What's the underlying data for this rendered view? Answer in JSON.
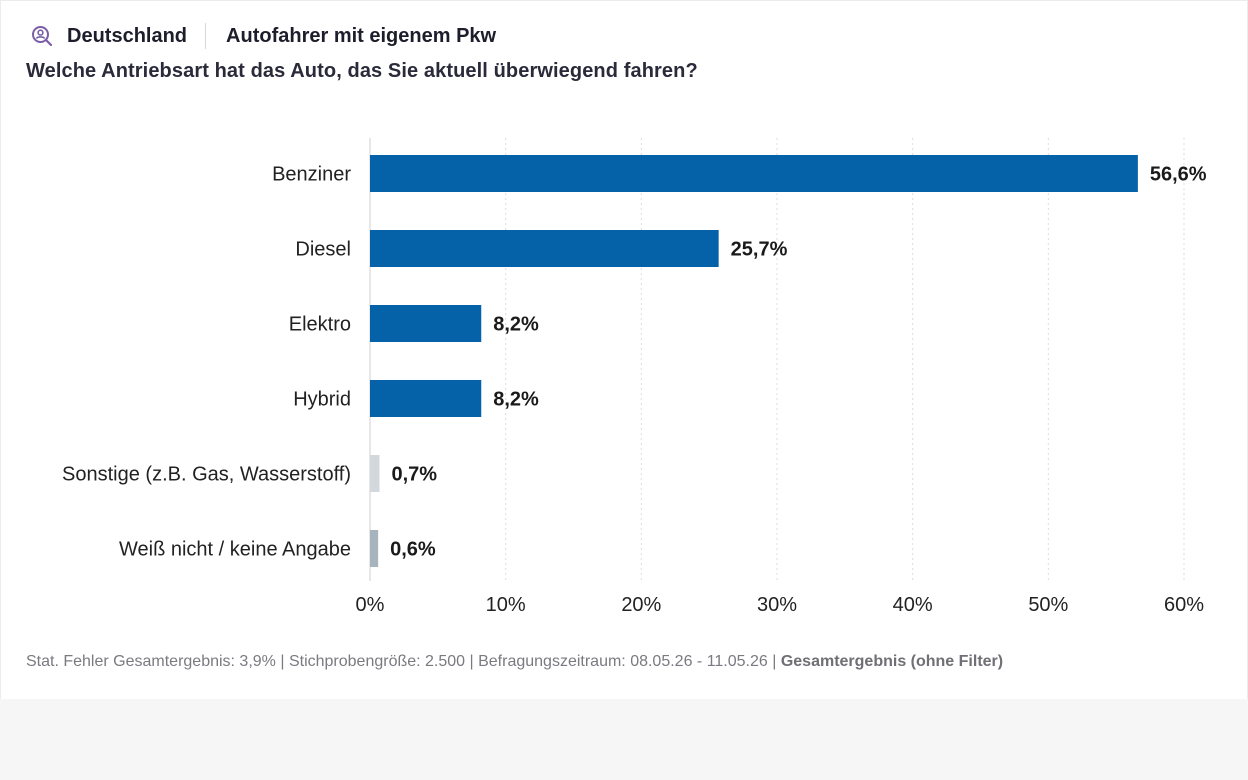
{
  "header": {
    "country": "Deutschland",
    "target_group": "Autofahrer mit eigenem Pkw",
    "question": "Welche Antriebsart hat das Auto, das Sie aktuell überwiegend fahren?"
  },
  "icons": {
    "country_icon": "search-person-icon"
  },
  "colors": {
    "primary_bar": "#0561a8",
    "other_bar": "#d3d8dd",
    "unknown_bar": "#a7b3bd",
    "grid": "#dcdcdc",
    "icon": "#7b5ea7"
  },
  "chart_data": {
    "type": "bar",
    "orientation": "horizontal",
    "categories": [
      "Benziner",
      "Diesel",
      "Elektro",
      "Hybrid",
      "Sonstige (z.B. Gas, Wasserstoff)",
      "Weiß nicht / keine Angabe"
    ],
    "values": [
      56.6,
      25.7,
      8.2,
      8.2,
      0.7,
      0.6
    ],
    "value_labels": [
      "56,6%",
      "25,7%",
      "8,2%",
      "8,2%",
      "0,7%",
      "0,6%"
    ],
    "bar_colors": [
      "#0561a8",
      "#0561a8",
      "#0561a8",
      "#0561a8",
      "#d3d8dd",
      "#a7b3bd"
    ],
    "xlim": [
      0,
      60
    ],
    "xticks": [
      0,
      10,
      20,
      30,
      40,
      50,
      60
    ],
    "xtick_labels": [
      "0%",
      "10%",
      "20%",
      "30%",
      "40%",
      "50%",
      "60%"
    ],
    "grid": true
  },
  "footer": {
    "text": "Stat. Fehler Gesamtergebnis: 3,9% | Stichprobengröße: 2.500 | Befragungszeitraum: 08.05.26 - 11.05.26 | ",
    "filter_label": "Gesamtergebnis (ohne Filter)"
  }
}
